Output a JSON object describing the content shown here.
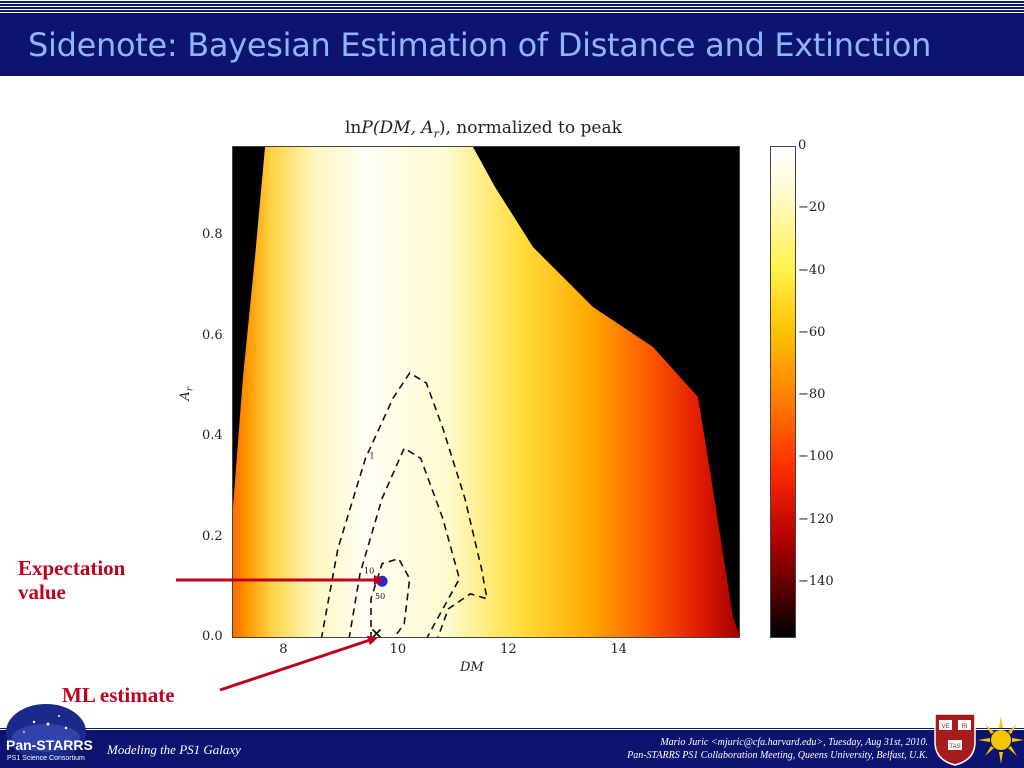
{
  "slide": {
    "title": "Sidenote: Bayesian Estimation of Distance and Extinction"
  },
  "chart_data": {
    "type": "heatmap",
    "title_prefix": "ln",
    "title_math": "P(DM, A",
    "title_sub": "r",
    "title_suffix": "), normalized to peak",
    "xlabel": "DM",
    "ylabel": "A",
    "ylabel_sub": "r",
    "xlim": [
      7.0,
      16.2
    ],
    "ylim": [
      0.0,
      0.98
    ],
    "xticks": [
      "8",
      "10",
      "12",
      "14"
    ],
    "xtick_values": [
      8,
      10,
      12,
      14
    ],
    "yticks": [
      "0.0",
      "0.2",
      "0.4",
      "0.6",
      "0.8"
    ],
    "ytick_values": [
      0.0,
      0.2,
      0.4,
      0.6,
      0.8
    ],
    "colorbar": {
      "ticks": [
        "0",
        "−20",
        "−40",
        "−60",
        "−80",
        "−100",
        "−120",
        "−140"
      ],
      "tick_values": [
        0,
        -20,
        -40,
        -60,
        -80,
        -100,
        -120,
        -140
      ],
      "range": [
        -158,
        0
      ],
      "colors": [
        "#ffffff",
        "#fff24a",
        "#ff7a00",
        "#b40000",
        "#000000"
      ]
    },
    "contours": [
      {
        "label": "1",
        "points": [
          [
            8.6,
            0.0
          ],
          [
            8.9,
            0.18
          ],
          [
            9.4,
            0.36
          ],
          [
            9.9,
            0.48
          ],
          [
            10.2,
            0.53
          ],
          [
            10.5,
            0.51
          ],
          [
            10.8,
            0.42
          ],
          [
            11.2,
            0.28
          ],
          [
            11.5,
            0.14
          ],
          [
            11.6,
            0.08
          ],
          [
            11.3,
            0.09
          ],
          [
            10.9,
            0.06
          ],
          [
            10.7,
            0.0
          ]
        ]
      },
      {
        "label": "10",
        "points": [
          [
            9.1,
            0.0
          ],
          [
            9.3,
            0.13
          ],
          [
            9.7,
            0.28
          ],
          [
            10.1,
            0.38
          ],
          [
            10.4,
            0.36
          ],
          [
            10.8,
            0.24
          ],
          [
            11.1,
            0.12
          ],
          [
            10.8,
            0.06
          ],
          [
            10.5,
            0.0
          ]
        ]
      },
      {
        "label": "50",
        "points": [
          [
            9.5,
            0.0
          ],
          [
            9.5,
            0.08
          ],
          [
            9.7,
            0.15
          ],
          [
            10.0,
            0.16
          ],
          [
            10.2,
            0.12
          ],
          [
            10.1,
            0.03
          ],
          [
            9.9,
            0.0
          ]
        ]
      }
    ],
    "expectation_point": {
      "x": 9.7,
      "y": 0.115,
      "color": "#1f2fcf"
    },
    "ml_point": {
      "x": 9.6,
      "y": 0.005
    }
  },
  "annotations": {
    "expectation_line1": "Expectation",
    "expectation_line2": "value",
    "ml": "ML estimate",
    "color": "#c0001c"
  },
  "footer": {
    "left": "Modeling the PS1 Galaxy",
    "right_line1": "Mario Juric <mjuric@cfa.harvard.edu>, Tuesday, Aug 31st, 2010.",
    "right_line2": "Pan-STARRS PS1 Collaboration Meeting, Queens University, Belfast, U.K.",
    "logo_text": "Pan-STARRS",
    "logo_sub": "PS1 Science Consortium"
  }
}
